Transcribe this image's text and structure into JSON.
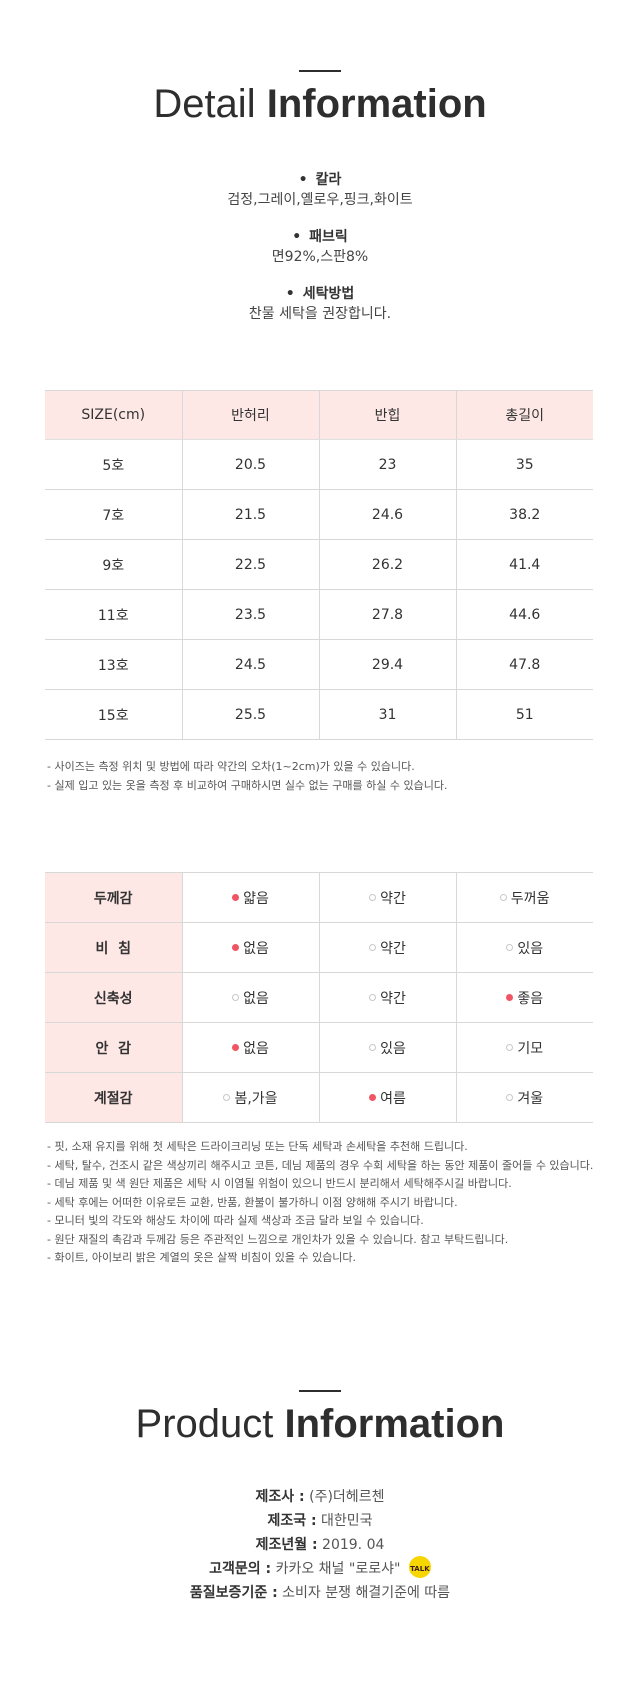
{
  "detail": {
    "title_light": "Detail",
    "title_bold": "Information",
    "specs": [
      {
        "label": "칼라",
        "value": "검정,그레이,옐로우,핑크,화이트"
      },
      {
        "label": "패브릭",
        "value": "면92%,스판8%"
      },
      {
        "label": "세탁방법",
        "value": "찬물 세탁을 권장합니다."
      }
    ],
    "bullet": "•"
  },
  "size_table": {
    "headers": [
      "SIZE(cm)",
      "반허리",
      "반힙",
      "총길이"
    ],
    "rows": [
      [
        "5호",
        "20.5",
        "23",
        "35"
      ],
      [
        "7호",
        "21.5",
        "24.6",
        "38.2"
      ],
      [
        "9호",
        "22.5",
        "26.2",
        "41.4"
      ],
      [
        "11호",
        "23.5",
        "27.8",
        "44.6"
      ],
      [
        "13호",
        "24.5",
        "29.4",
        "47.8"
      ],
      [
        "15호",
        "25.5",
        "31",
        "51"
      ]
    ],
    "notes": [
      "- 사이즈는 측정 위치 및 방법에 따라 약간의 오차(1~2cm)가 있을 수 있습니다.",
      "- 실제 입고 있는 옷을 측정 후 비교하여 구매하시면 실수 없는 구매를 하실 수 있습니다."
    ]
  },
  "feature_table": {
    "rows": [
      {
        "label": "두께감",
        "options": [
          {
            "text": "얇음",
            "selected": true
          },
          {
            "text": "약간",
            "selected": false
          },
          {
            "text": "두꺼움",
            "selected": false
          }
        ]
      },
      {
        "label": "비  침",
        "options": [
          {
            "text": "없음",
            "selected": true
          },
          {
            "text": "약간",
            "selected": false
          },
          {
            "text": "있음",
            "selected": false
          }
        ]
      },
      {
        "label": "신축성",
        "options": [
          {
            "text": "없음",
            "selected": false
          },
          {
            "text": "약간",
            "selected": false
          },
          {
            "text": "좋음",
            "selected": true
          }
        ]
      },
      {
        "label": "안  감",
        "options": [
          {
            "text": "없음",
            "selected": true
          },
          {
            "text": "있음",
            "selected": false
          },
          {
            "text": "기모",
            "selected": false
          }
        ]
      },
      {
        "label": "계절감",
        "options": [
          {
            "text": "봄,가을",
            "selected": false
          },
          {
            "text": "여름",
            "selected": true
          },
          {
            "text": "겨울",
            "selected": false
          }
        ]
      }
    ],
    "marker_color": "#f05564",
    "notes": [
      "- 핏, 소재 유지를 위해 첫 세탁은 드라이크리닝 또는 단독 세탁과 손세탁을 추천해 드립니다.",
      "- 세탁, 탈수, 건조시 같은 색상끼리 해주시고 코튼, 데님 제품의 경우 수회 세탁을 하는 동안 제품이 줄어들 수 있습니다.",
      "- 데님 제품 및 색 원단 제품은 세탁 시 이염될 위험이 있으니 반드시 분리해서 세탁해주시길 바랍니다.",
      "- 세탁 후에는 어떠한 이유로든 교환, 반품, 환불이 불가하니 이점 양해해 주시기 바랍니다.",
      "- 모니터 빛의 각도와 해상도 차이에 따라 실제 색상과 조금 달라 보일 수 있습니다.",
      "- 원단 재질의 촉감과 두께감 등은 주관적인 느낌으로 개인차가 있을 수 있습니다. 참고 부탁드립니다.",
      "- 화이트, 아이보리 밝은 계열의 옷은 살짝 비침이 있을 수 있습니다."
    ]
  },
  "product": {
    "title_light": "Product",
    "title_bold": "Information",
    "rows": [
      {
        "key": "제조사 :",
        "value": "(주)더헤르첸"
      },
      {
        "key": "제조국 :",
        "value": "대한민국"
      },
      {
        "key": "제조년월 :",
        "value": "2019. 04"
      },
      {
        "key": "고객문의 :",
        "value": "카카오 채널 \"로로샤\""
      },
      {
        "key": "품질보증기준 :",
        "value": "소비자 분쟁 해결기준에 따름"
      }
    ],
    "kakao_badge": "TALK",
    "kakao_color": "#f7d600"
  }
}
